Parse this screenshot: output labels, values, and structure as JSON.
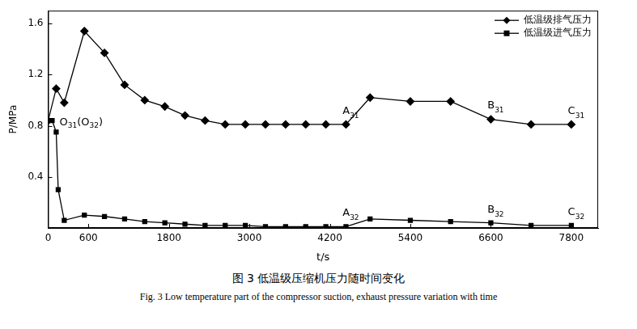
{
  "chart_data": {
    "type": "line",
    "title": "图 3 低温级压缩机压力随时间变化",
    "subtitle": "Fig. 3 Low temperature part of the compressor suction, exhaust pressure variation with time",
    "x_label": "t/s",
    "y_label": "P/MPa",
    "xlim": [
      0,
      8200
    ],
    "xticks": [
      0,
      600,
      1800,
      3000,
      4200,
      5400,
      6600,
      7800
    ],
    "ylim": [
      0,
      1.7
    ],
    "yticks": [
      0.4,
      0.8,
      1.2,
      1.6
    ],
    "grid": false,
    "legend": "upper right",
    "series": [
      {
        "name": "低温级排气压力",
        "color": "#000000",
        "marker": "diamond",
        "line_style": "solid",
        "x": [
          0,
          120,
          240,
          540,
          840,
          1140,
          1440,
          1740,
          2040,
          2340,
          2640,
          2940,
          3240,
          3540,
          3840,
          4140,
          4440,
          4800,
          5400,
          6000,
          6600,
          7200,
          7800
        ],
        "values": [
          0.84,
          1.09,
          0.98,
          1.54,
          1.37,
          1.12,
          1.0,
          0.95,
          0.88,
          0.84,
          0.81,
          0.81,
          0.81,
          0.81,
          0.81,
          0.81,
          0.81,
          1.02,
          0.99,
          0.99,
          0.85,
          0.81,
          0.81
        ]
      },
      {
        "name": "低温级进气压力",
        "color": "#000000",
        "marker": "square",
        "line_style": "solid",
        "x": [
          0,
          60,
          120,
          150,
          240,
          540,
          840,
          1140,
          1440,
          1740,
          2040,
          2340,
          2640,
          2940,
          3240,
          3540,
          3840,
          4140,
          4440,
          4800,
          5400,
          6000,
          6600,
          7200,
          7800
        ],
        "values": [
          0.84,
          0.84,
          0.75,
          0.3,
          0.06,
          0.1,
          0.09,
          0.07,
          0.05,
          0.04,
          0.03,
          0.02,
          0.02,
          0.02,
          0.01,
          0.01,
          0.01,
          0.01,
          0.01,
          0.07,
          0.06,
          0.05,
          0.04,
          0.02,
          0.02
        ]
      }
    ],
    "annotations": [
      {
        "text": "O31(O32)",
        "x": 0,
        "y": 0.84
      },
      {
        "text": "A31",
        "x": 4440,
        "y": 0.81
      },
      {
        "text": "B31",
        "x": 6600,
        "y": 0.85
      },
      {
        "text": "C31",
        "x": 7800,
        "y": 0.81
      },
      {
        "text": "A32",
        "x": 4440,
        "y": 0.01
      },
      {
        "text": "B32",
        "x": 6600,
        "y": 0.04
      },
      {
        "text": "C32",
        "x": 7800,
        "y": 0.02
      }
    ]
  }
}
